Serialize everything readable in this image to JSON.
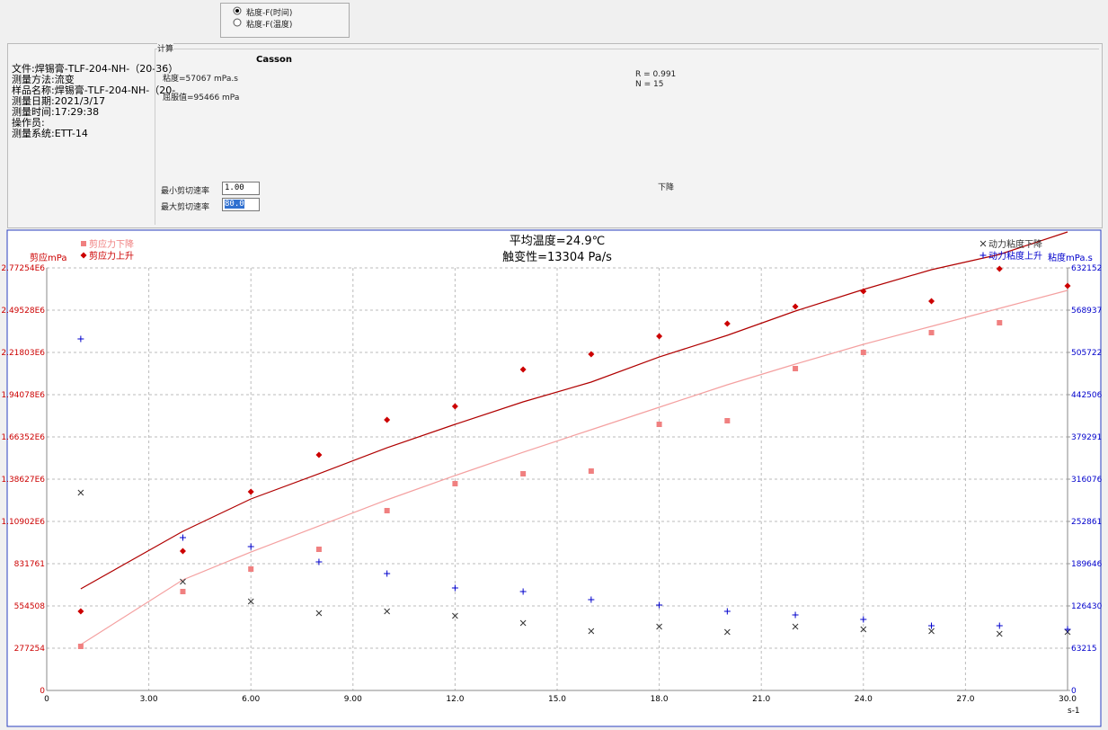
{
  "mode_options": [
    {
      "label": "粘度-F(时间)",
      "selected": true
    },
    {
      "label": "粘度-F(温度)",
      "selected": false
    }
  ],
  "info": {
    "lines": [
      "文件:焊锡膏-TLF-204-NH-（20-36）",
      "测量方法:流变",
      "样品名称:焊锡膏-TLF-204-NH-（20-",
      "测量日期:2021/3/17",
      "测量时间:17:29:38",
      "操作员:",
      "测量系统:ETT-14"
    ]
  },
  "calc": {
    "group_title": "计算",
    "model": "Casson",
    "viscosity": "粘度=57067 mPa.s",
    "yield": "屈服值=95466 mPa",
    "r": "R = 0.991",
    "n": "N = 15",
    "min_rate_label": "最小剪切速率",
    "min_rate": "1.00",
    "max_rate_label": "最大剪切速率",
    "max_rate": "80.0",
    "direction": "下降"
  },
  "chart_data": {
    "type": "scatter",
    "title": "平均温度=24.9℃",
    "subtitle": "触变性=13304 Pa/s",
    "ylabel": "剪应mPa",
    "y2label": "粘度mPa.s",
    "xlabel": "s-1",
    "grid": true,
    "x": [
      1,
      4,
      6,
      8,
      10,
      12,
      14,
      16,
      18,
      20,
      22,
      24,
      26,
      28,
      30
    ],
    "xlim": [
      0,
      30
    ],
    "xticks": [
      0,
      {
        "value": 3,
        "label": "3.00"
      },
      {
        "value": 6,
        "label": "6.00"
      },
      {
        "value": 9,
        "label": "9.00"
      },
      {
        "value": 12,
        "label": "12.0"
      },
      {
        "value": 15,
        "label": "15.0"
      },
      {
        "value": 18,
        "label": "18.0"
      },
      {
        "value": 21,
        "label": "21.0"
      },
      {
        "value": 24,
        "label": "24.0"
      },
      {
        "value": 27,
        "label": "27.0"
      },
      {
        "value": 30,
        "label": "30.0"
      }
    ],
    "ylim": [
      0,
      2772540
    ],
    "yticks": [
      0,
      277254,
      554508,
      831761,
      {
        "value": 1109020,
        "label": "1.10902E6"
      },
      {
        "value": 1386270,
        "label": "1.38627E6"
      },
      {
        "value": 1663520,
        "label": "1.66352E6"
      },
      {
        "value": 1940780,
        "label": "1.94078E6"
      },
      {
        "value": 2218030,
        "label": "2.21803E6"
      },
      {
        "value": 2495280,
        "label": "2.49528E6"
      },
      {
        "value": 2772540,
        "label": "2.77254E6"
      }
    ],
    "y2lim": [
      0,
      632152
    ],
    "y2ticks": [
      0,
      63215,
      126430,
      189646,
      252861,
      316076,
      379291,
      442506,
      505722,
      568937,
      632152
    ],
    "series": [
      {
        "name": "剪应力下降",
        "color": "#f08080",
        "marker": "square",
        "values": [
          289100,
          648900,
          796400,
          926100,
          1179800,
          1356800,
          1421700,
          1439400,
          1746100,
          1769700,
          2111800,
          2218000,
          2347800,
          2412700,
          null
        ]
      },
      {
        "name": "剪应力上升",
        "color": "#cc0000",
        "marker": "diamond",
        "values": [
          519100,
          914300,
          1303700,
          1545500,
          1775600,
          1864100,
          2105900,
          2206200,
          2324200,
          2406800,
          2518900,
          2619200,
          2554300,
          2766600,
          2654600
        ]
      },
      {
        "name": "动力粘度下降",
        "color": "#333333",
        "marker": "cross",
        "axis": "y2",
        "values": [
          295900,
          162700,
          133200,
          115700,
          118400,
          111600,
          100900,
          88800,
          95500,
          87400,
          95500,
          91500,
          88800,
          84700,
          87400
        ]
      },
      {
        "name": "动力粘度上升",
        "color": "#0000cc",
        "marker": "plus",
        "axis": "y2",
        "values": [
          525900,
          228700,
          215200,
          192300,
          174900,
          153300,
          148000,
          135800,
          127800,
          118400,
          113000,
          106300,
          96800,
          96800,
          91500
        ]
      }
    ],
    "fits": [
      {
        "color": "#b00000",
        "values": [
          666600,
          1044100,
          1256500,
          1421700,
          1592700,
          1746100,
          1893600,
          2023400,
          2188500,
          2330100,
          2489400,
          2631000,
          2760700,
          2861000,
          3008500
        ]
      },
      {
        "color": "#f4a0a0",
        "values": [
          300800,
          725600,
          908400,
          1079500,
          1250600,
          1409900,
          1563200,
          1710700,
          1858200,
          2005700,
          2141300,
          2271100,
          2389100,
          2507100,
          2625100
        ]
      }
    ]
  }
}
